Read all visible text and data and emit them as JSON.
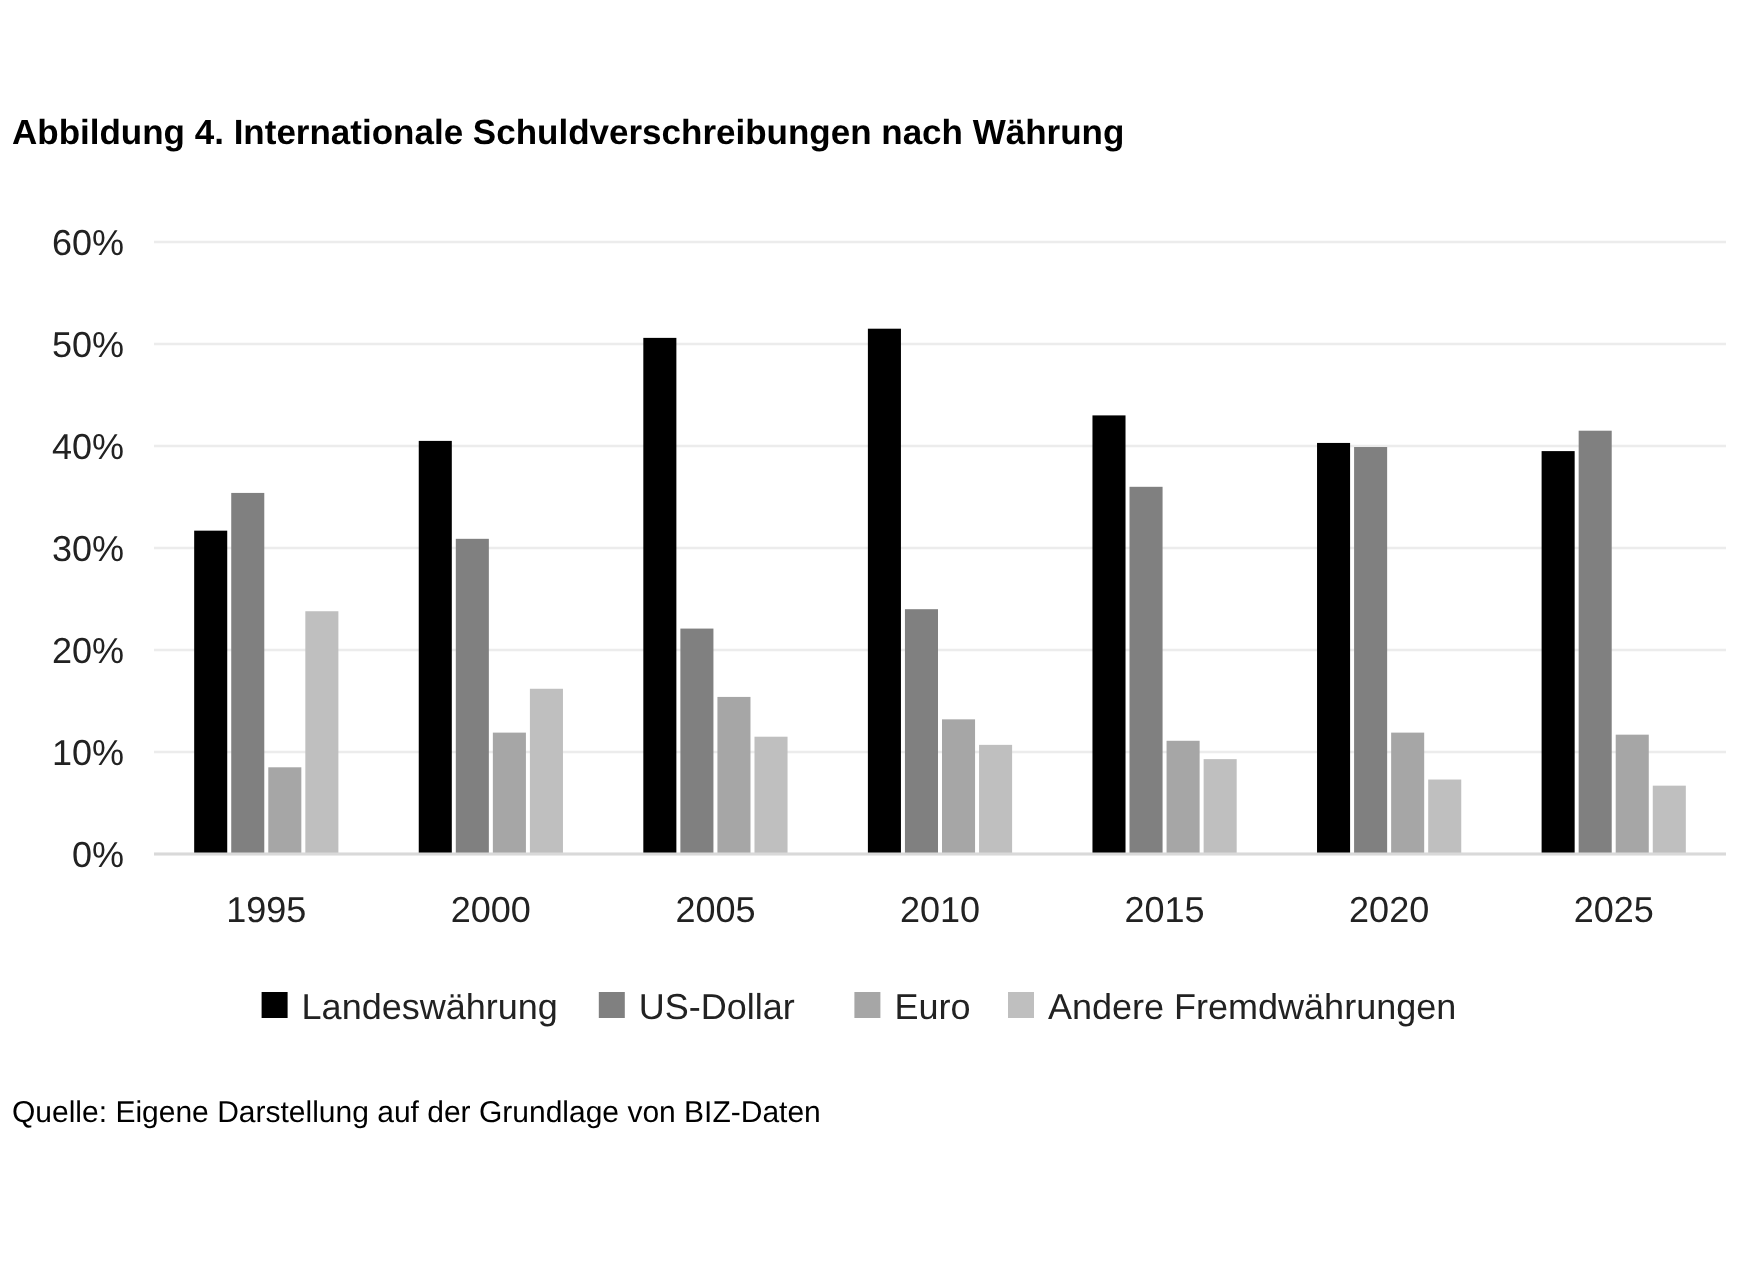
{
  "chart_data": {
    "type": "bar",
    "title": "Abbildung 4. Internationale Schuldverschreibungen nach Währung",
    "categories": [
      "1995",
      "2000",
      "2005",
      "2010",
      "2015",
      "2020",
      "2025"
    ],
    "series": [
      {
        "name": "Landeswährung",
        "color": "#000000",
        "values": [
          31.7,
          40.5,
          50.6,
          51.5,
          43.0,
          40.3,
          39.5
        ]
      },
      {
        "name": "US-Dollar",
        "color": "#808080",
        "values": [
          35.4,
          30.9,
          22.1,
          24.0,
          36.0,
          39.9,
          41.5
        ]
      },
      {
        "name": "Euro",
        "color": "#a6a6a6",
        "values": [
          8.5,
          11.9,
          15.4,
          13.2,
          11.1,
          11.9,
          11.7
        ]
      },
      {
        "name": "Andere Fremdwährungen",
        "color": "#bfbfbf",
        "values": [
          23.8,
          16.2,
          11.5,
          10.7,
          9.3,
          7.3,
          6.7
        ]
      }
    ],
    "ylim": [
      0,
      60
    ],
    "yticks": [
      {
        "value": 0,
        "label": "0%"
      },
      {
        "value": 10,
        "label": "10%"
      },
      {
        "value": 20,
        "label": "20%"
      },
      {
        "value": 30,
        "label": "30%"
      },
      {
        "value": 40,
        "label": "40%"
      },
      {
        "value": 50,
        "label": "50%"
      },
      {
        "value": 60,
        "label": "60%"
      }
    ],
    "grid": "y",
    "legend": "bottom",
    "annotations": [
      "Quelle: Eigene Darstellung auf der Grundlage von BIZ-Daten"
    ]
  }
}
